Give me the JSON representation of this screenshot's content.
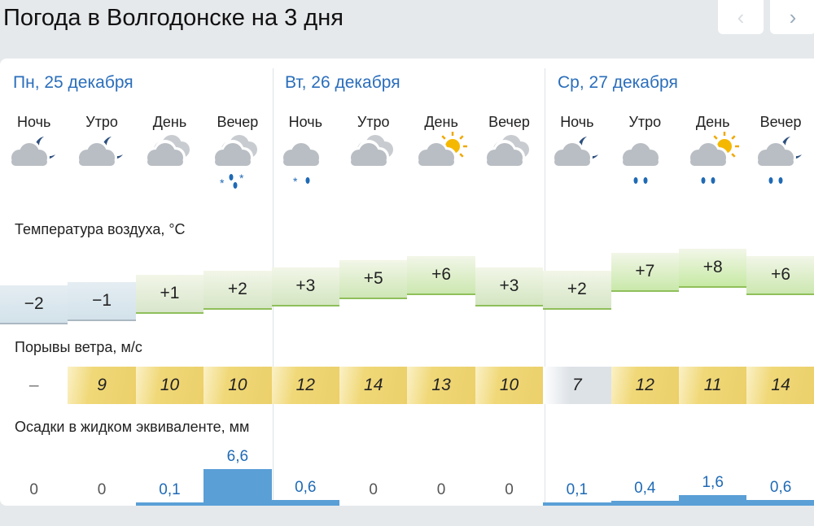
{
  "title": "Погода в Волгодонске на 3 дня",
  "nav": {
    "prev": "‹",
    "next": "›"
  },
  "days": [
    "Пн, 25 декабря",
    "Вт, 26 декабря",
    "Ср, 27 декабря"
  ],
  "periods": [
    "Ночь",
    "Утро",
    "День",
    "Вечер",
    "Ночь",
    "Утро",
    "День",
    "Вечер",
    "Ночь",
    "Утро",
    "День",
    "Вечер"
  ],
  "icons": [
    "cloudy-moon",
    "cloudy-moon",
    "overcast",
    "overcast-snow-rain",
    "cloudy-snow",
    "overcast",
    "partly-cloudy-sun",
    "overcast",
    "cloudy-moon",
    "cloudy-rain",
    "cloudy-sun-rain",
    "cloudy-moon-rain"
  ],
  "labels": {
    "temp": "Температура воздуха, °C",
    "wind": "Порывы ветра, м/с",
    "precip": "Осадки в жидком эквиваленте, мм"
  },
  "temps": [
    "−2",
    "−1",
    "+1",
    "+2",
    "+3",
    "+5",
    "+6",
    "+3",
    "+2",
    "+7",
    "+8",
    "+6"
  ],
  "temp_values": [
    -2,
    -1,
    1,
    2,
    3,
    5,
    6,
    3,
    2,
    7,
    8,
    6
  ],
  "wind": [
    "–",
    "9",
    "10",
    "10",
    "12",
    "14",
    "13",
    "10",
    "7",
    "12",
    "11",
    "14"
  ],
  "wind_values": [
    0,
    9,
    10,
    10,
    12,
    14,
    13,
    10,
    7,
    12,
    11,
    14
  ],
  "precip": [
    "0",
    "0",
    "0,1",
    "6,6",
    "0,6",
    "0",
    "0",
    "0",
    "0,1",
    "0,4",
    "1,6",
    "0,6"
  ],
  "precip_values": [
    0,
    0,
    0.1,
    6.6,
    0.6,
    0,
    0,
    0,
    0.1,
    0.4,
    1.6,
    0.6
  ],
  "colors": {
    "accent": "#2a6ebb",
    "wind": "#f0d878",
    "precip": "#5a9fd6"
  }
}
